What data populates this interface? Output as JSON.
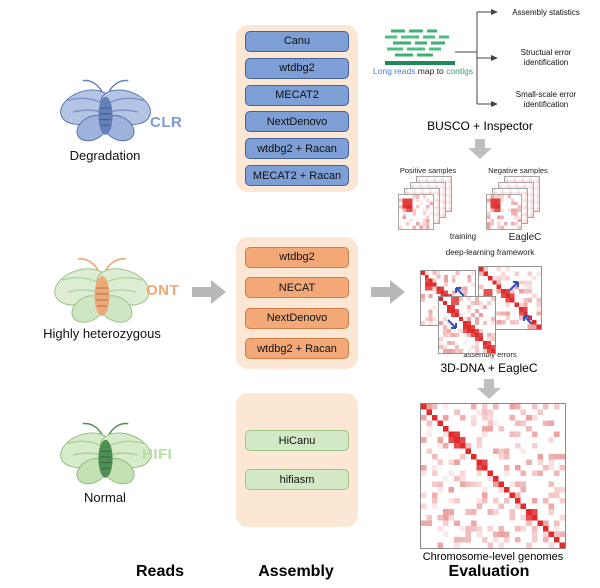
{
  "footer": {
    "reads": "Reads",
    "assembly": "Assembly",
    "evaluation": "Evaluation"
  },
  "reads_column": {
    "items": [
      {
        "tag": "CLR",
        "label": "Degradation"
      },
      {
        "tag": "ONT",
        "label": "Highly heterozygous"
      },
      {
        "tag": "HIFI",
        "label": "Normal"
      }
    ]
  },
  "assembly_column": {
    "groups": [
      {
        "type": "CLR",
        "tools": [
          "Canu",
          "wtdbg2",
          "MECAT2",
          "NextDenovo",
          "wtdbg2 + Racan",
          "MECAT2 + Racan"
        ]
      },
      {
        "type": "ONT",
        "tools": [
          "wtdbg2",
          "NECAT",
          "NextDenovo",
          "wtdbg2 + Racan"
        ]
      },
      {
        "type": "HIFI",
        "tools": [
          "HiCanu",
          "hifiasm"
        ]
      }
    ]
  },
  "evaluation_column": {
    "mapping_caption": {
      "long_reads": "Long reads",
      "map_to": " map to ",
      "contigs": "contigs"
    },
    "bracket_items": [
      "Assembly statistics",
      "Structual error identification",
      "Small-scale error identification"
    ],
    "busco_label": "BUSCO + Inspector",
    "samples": {
      "positive_label": "Positive samples",
      "negative_label": "Negative samples",
      "training_label": "training",
      "eaglec_label": "EagleC",
      "framework_label": "deep-learning framework"
    },
    "errors_label": "assembly errors",
    "scaffolding_label": "3D-DNA + EagleC",
    "final_label": "Chromosome-level genomes"
  },
  "colors": {
    "clr_blue": "#7b9bd2",
    "ont_orange": "#f0a877",
    "hifi_green": "#b9dca5",
    "peach_bg": "#fbe7d4",
    "heatmap_red": "#e02b2b",
    "arrow_gray": "#b8b8b8",
    "reads_green": "#3fae72",
    "long_reads_blue": "#4a7dd6",
    "contigs_green": "#2ba06a"
  }
}
